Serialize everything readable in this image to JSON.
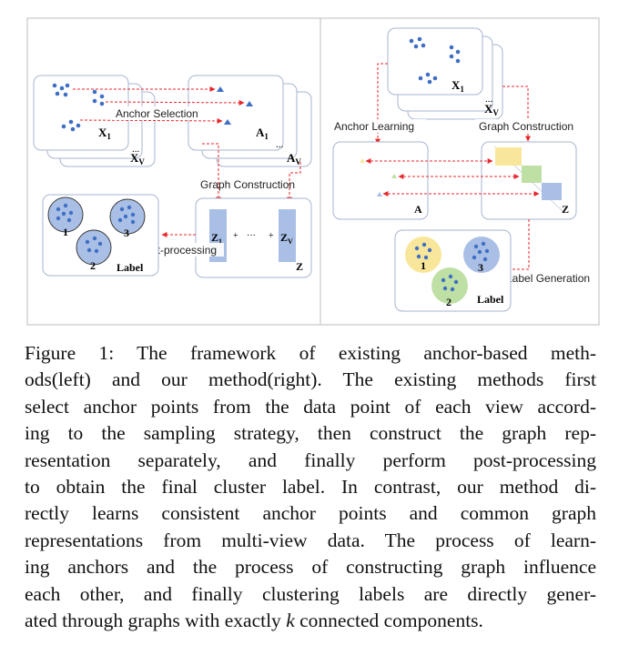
{
  "figure": {
    "left_panel": {
      "view_first": "X",
      "view_first_sub": "1",
      "view_last": "X",
      "view_last_sub": "V",
      "anchor_first": "A",
      "anchor_first_sub": "1",
      "anchor_last": "A",
      "anchor_last_sub": "V",
      "ellipsis": "...",
      "anchor_selection_label": "Anchor Selection",
      "graph_construction_label": "Graph Construction",
      "post_processing_label": "Post-processing",
      "graph_first": "Z",
      "graph_first_sub": "1",
      "plus": "+",
      "dots": "···",
      "graph_last": "Z",
      "graph_last_sub": "V",
      "graph_label": "Z",
      "cluster_labels": [
        "1",
        "2",
        "3"
      ],
      "label_box_title": "Label"
    },
    "right_panel": {
      "view_first": "X",
      "view_first_sub": "1",
      "view_last": "X",
      "view_last_sub": "V",
      "ellipsis": "...",
      "anchor_learning_label": "Anchor Learning",
      "graph_construction_label": "Graph Construction",
      "anchor_box_label": "A",
      "graph_box_label": "Z",
      "label_generation_label": "Label Generation",
      "cluster_labels": [
        "1",
        "2",
        "3"
      ],
      "label_box_title": "Label"
    },
    "colors": {
      "point_blue": "#3f6fc4",
      "arrow_red": "#e8262b",
      "block_blue": "#a9bfe6",
      "block_yellow": "#f8e79a",
      "block_green": "#bfe0a5",
      "border_gray": "#b9bfca"
    }
  },
  "caption": {
    "lines": [
      "Figure 1: The framework of existing anchor-based meth-",
      "ods(left) and our method(right). The existing methods first",
      "select anchor points from the data point of each view accord-",
      "ing to the sampling strategy, then construct the graph rep-",
      "resentation separately, and finally perform post-processing",
      "to obtain the final cluster label. In contrast, our method di-",
      "rectly learns consistent anchor points and common graph",
      "representations from multi-view data. The process of learn-",
      "ing anchors and the process of constructing graph influence",
      "each other, and finally clustering labels are directly gener-"
    ],
    "last_line_prefix": "ated through graphs with exactly ",
    "last_line_var": "k",
    "last_line_suffix": " connected components."
  }
}
